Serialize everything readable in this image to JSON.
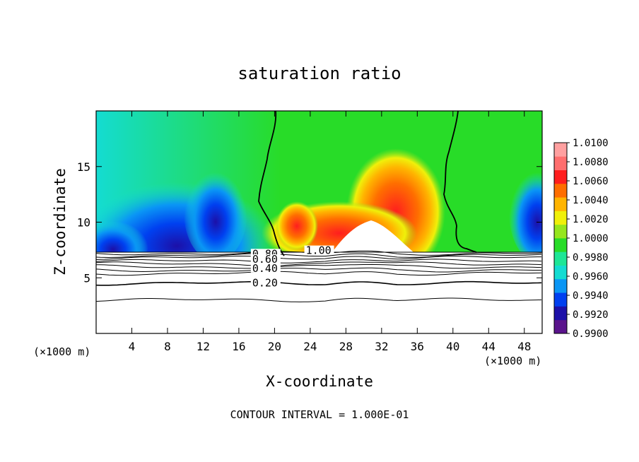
{
  "chart_data": {
    "type": "heatmap",
    "title": "saturation ratio",
    "xlabel": "X-coordinate",
    "ylabel": "Z-coordinate",
    "x_unit": "(×1000 m)",
    "x_unit_right": "(×1000 m)",
    "footer": "CONTOUR INTERVAL = 1.000E-01",
    "xlim": [
      0,
      50
    ],
    "ylim": [
      0,
      20
    ],
    "xticks": [
      4,
      8,
      12,
      16,
      20,
      24,
      28,
      32,
      36,
      40,
      44,
      48
    ],
    "yticks": [
      5,
      10,
      15
    ],
    "colorbar": {
      "ticks": [
        "0.9900",
        "0.9920",
        "0.9940",
        "0.9960",
        "0.9980",
        "1.0000",
        "1.0020",
        "1.0040",
        "1.0060",
        "1.0080",
        "1.0100"
      ],
      "colors": [
        "#5a148c",
        "#1c10a8",
        "#0040f0",
        "#0a96f5",
        "#14dcd2",
        "#1ee696",
        "#28dc28",
        "#96e61e",
        "#f0f00a",
        "#ffb400",
        "#ff6e00",
        "#ff1e1e",
        "#ff6e6e",
        "#ffa0a0"
      ]
    },
    "contour_labels": [
      {
        "text": "1.00",
        "x": 23.5,
        "y": 7.2
      },
      {
        "text": "0.80",
        "x": 17.5,
        "y": 6.9
      },
      {
        "text": "0.60",
        "x": 17.5,
        "y": 6.4
      },
      {
        "text": "0.40",
        "x": 17.5,
        "y": 5.6
      },
      {
        "text": "0.20",
        "x": 17.5,
        "y": 4.3
      }
    ],
    "contour_levels": [
      7.2,
      7.0,
      6.8,
      6.5,
      6.25,
      6.0,
      5.7,
      5.4,
      4.5,
      3.0
    ],
    "boundary_z": 7.3
  }
}
